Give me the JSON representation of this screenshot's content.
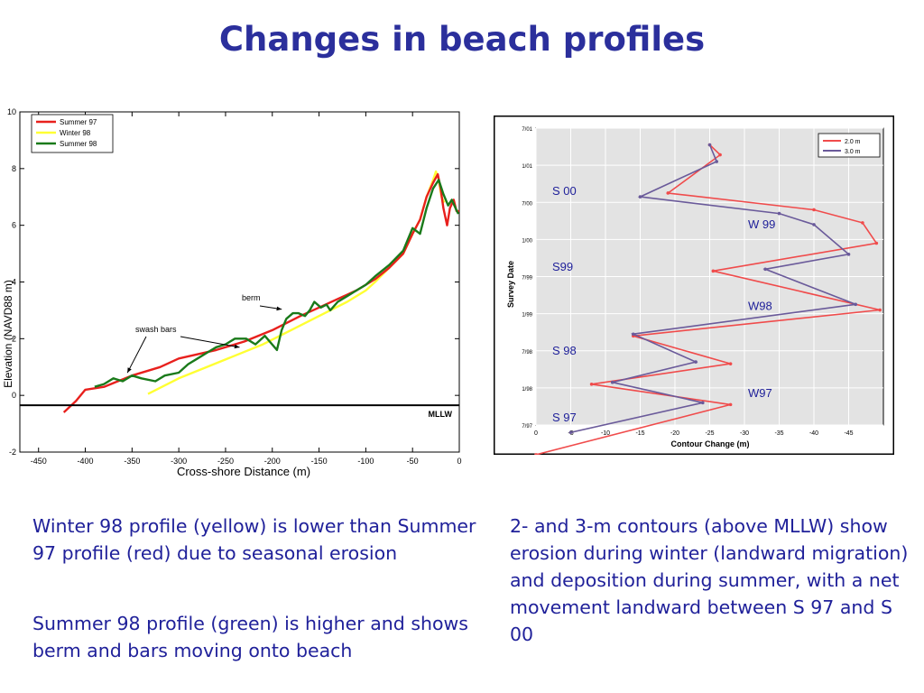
{
  "slide": {
    "title": "Changes in beach profiles",
    "notes": [
      "Winter 98 profile (yellow) is lower than Summer 97 profile (red) due to seasonal erosion",
      "Summer 98 profile (green) is higher and shows berm and bars moving onto beach",
      "2- and 3-m contours (above MLLW) show erosion during winter (landward migration) and deposition during summer, with a net movement landward between S 97 and S 00"
    ]
  },
  "colors": {
    "title": "#2b2f9c",
    "text": "#20219a",
    "summer97": "#e8201d",
    "winter98": "#ffff33",
    "summer98": "#1a7a1a",
    "contour2": "#f04b4b",
    "contour3": "#6a5a9a",
    "plotbg2": "#e3e3e3"
  },
  "chart_data": [
    {
      "type": "line",
      "title": "",
      "xlabel": "Cross-shore Distance (m)",
      "ylabel": "Elevation (NAVD88 m)",
      "xlim": [
        -470,
        0
      ],
      "ylim": [
        -2,
        10
      ],
      "xticks": [
        "-450",
        "-400",
        "-350",
        "-300",
        "-250",
        "-200",
        "-150",
        "-100",
        "-50",
        "0"
      ],
      "yticks": [
        "-2",
        "0",
        "2",
        "4",
        "6",
        "8",
        "10"
      ],
      "grid": false,
      "legend_position": "top-left",
      "series": [
        {
          "name": "Summer 97",
          "color_key": "summer97",
          "x": [
            -423,
            -410,
            -400,
            -380,
            -350,
            -320,
            -300,
            -260,
            -230,
            -200,
            -170,
            -150,
            -130,
            -110,
            -90,
            -75,
            -60,
            -50,
            -42,
            -35,
            -28,
            -23,
            -20,
            -17,
            -13,
            -10,
            -6,
            -3,
            0
          ],
          "y": [
            -0.6,
            -0.2,
            0.2,
            0.3,
            0.7,
            1.0,
            1.3,
            1.6,
            1.9,
            2.3,
            2.8,
            3.1,
            3.4,
            3.7,
            4.1,
            4.5,
            5.0,
            5.7,
            6.2,
            7.0,
            7.5,
            7.8,
            7.3,
            6.6,
            6.0,
            6.6,
            6.9,
            6.5,
            6.5
          ]
        },
        {
          "name": "Winter 98",
          "color_key": "winter98",
          "x": [
            -333,
            -300,
            -270,
            -240,
            -210,
            -180,
            -150,
            -120,
            -100,
            -90,
            -75,
            -60,
            -50,
            -42,
            -35,
            -28,
            -25,
            -22,
            -19,
            -16
          ],
          "y": [
            0.05,
            0.6,
            1.0,
            1.4,
            1.8,
            2.3,
            2.8,
            3.3,
            3.7,
            4.0,
            4.5,
            5.0,
            5.7,
            6.2,
            7.0,
            7.6,
            7.9,
            7.6,
            7.0,
            6.8
          ]
        },
        {
          "name": "Summer 98",
          "color_key": "summer98",
          "x": [
            -390,
            -380,
            -370,
            -360,
            -350,
            -340,
            -325,
            -315,
            -300,
            -290,
            -280,
            -270,
            -260,
            -250,
            -240,
            -228,
            -218,
            -208,
            -195,
            -190,
            -185,
            -178,
            -172,
            -165,
            -160,
            -155,
            -148,
            -142,
            -138,
            -130,
            -120,
            -110,
            -100,
            -90,
            -75,
            -60,
            -50,
            -42,
            -35,
            -28,
            -22,
            -17,
            -12,
            -8,
            -4,
            -1
          ],
          "y": [
            0.3,
            0.4,
            0.6,
            0.5,
            0.7,
            0.6,
            0.5,
            0.7,
            0.8,
            1.1,
            1.3,
            1.5,
            1.7,
            1.8,
            2.0,
            2.0,
            1.8,
            2.1,
            1.6,
            2.3,
            2.7,
            2.9,
            2.9,
            2.8,
            3.0,
            3.3,
            3.1,
            3.2,
            3.0,
            3.3,
            3.5,
            3.7,
            3.9,
            4.2,
            4.6,
            5.1,
            5.9,
            5.7,
            6.6,
            7.3,
            7.6,
            7.1,
            6.7,
            6.9,
            6.6,
            6.4
          ]
        }
      ],
      "annotations": [
        {
          "label": "berm",
          "x": -188,
          "y": 3.1
        },
        {
          "label": "swash bars",
          "x": -355,
          "y": 0.7
        },
        {
          "label": "swash bars",
          "x": -235,
          "y": 1.6
        },
        {
          "label": "MLLW",
          "y": -0.35
        }
      ]
    },
    {
      "type": "line",
      "title": "",
      "xlabel": "Contour Change (m)",
      "ylabel": "Survey Date",
      "xlim": [
        0,
        -50
      ],
      "xticks": [
        "0",
        "-5",
        "-10",
        "-15",
        "-20",
        "-25",
        "-30",
        "-35",
        "-40",
        "-45"
      ],
      "yticks": [
        "7/01",
        "1/01",
        "7/00",
        "1/00",
        "7/99",
        "1/99",
        "7/98",
        "1/98",
        "7/97"
      ],
      "grid": true,
      "legend_position": "top-right",
      "series": [
        {
          "name": "2.0 m",
          "color_key": "contour2",
          "x": [
            -25,
            -26.5,
            -19,
            -40,
            -47,
            -49,
            -25.5,
            -49.5,
            -14,
            -28,
            -8,
            -28,
            0
          ],
          "y": [
            0.45,
            0.72,
            1.75,
            2.2,
            2.55,
            3.1,
            3.85,
            4.9,
            5.6,
            6.35,
            6.9,
            7.45,
            8.8
          ]
        },
        {
          "name": "3.0 m",
          "color_key": "contour3",
          "x": [
            -25,
            -26,
            -15,
            -35,
            -40,
            -45,
            -33,
            -46,
            -14,
            -23,
            -11,
            -24,
            -5
          ],
          "y": [
            0.45,
            0.9,
            1.85,
            2.3,
            2.6,
            3.4,
            3.8,
            4.75,
            5.55,
            6.3,
            6.85,
            7.4,
            8.2
          ]
        }
      ],
      "annotations": [
        {
          "label": "S 00",
          "y": 1.7
        },
        {
          "label": "W 99",
          "y": 2.6
        },
        {
          "label": "S99",
          "y": 3.75
        },
        {
          "label": "W98",
          "y": 4.8
        },
        {
          "label": "S 98",
          "y": 6.0
        },
        {
          "label": "W97",
          "y": 7.15
        },
        {
          "label": "S 97",
          "y": 7.8
        }
      ]
    }
  ]
}
